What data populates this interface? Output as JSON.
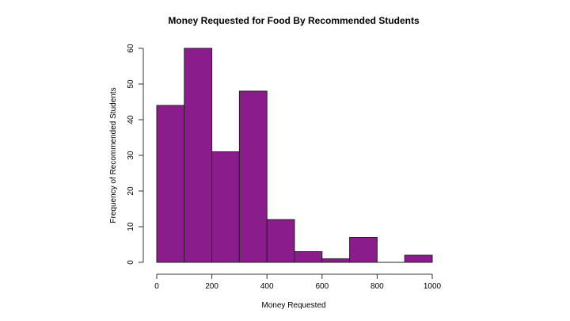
{
  "chart_data": {
    "type": "bar",
    "title": "Money Requested for Food By Recommended Students",
    "xlabel": "Money Requested",
    "ylabel": "Frequency of Recommended Students",
    "bin_edges": [
      0,
      100,
      200,
      300,
      400,
      500,
      600,
      700,
      800,
      900,
      1000
    ],
    "values": [
      44,
      60,
      31,
      48,
      12,
      3,
      1,
      7,
      0,
      2
    ],
    "x_ticks": [
      0,
      200,
      400,
      600,
      800,
      1000
    ],
    "y_ticks": [
      0,
      10,
      20,
      30,
      40,
      50,
      60
    ],
    "xlim": [
      0,
      1000
    ],
    "ylim": [
      0,
      60
    ],
    "grid": false,
    "bar_color": "#8B1C8B"
  }
}
